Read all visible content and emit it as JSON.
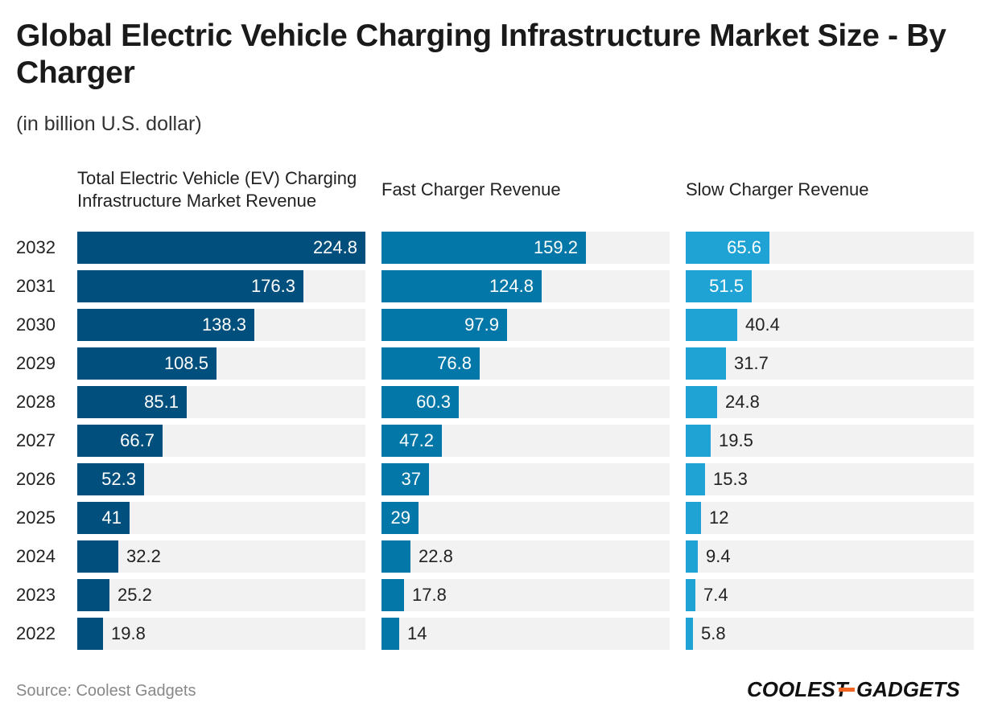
{
  "chart_data": {
    "type": "bar",
    "orientation": "horizontal",
    "title": "Global Electric Vehicle Charging Infrastructure Market Size - By Charger",
    "subtitle": "(in billion U.S. dollar)",
    "categories": [
      "2032",
      "2031",
      "2030",
      "2029",
      "2028",
      "2027",
      "2026",
      "2025",
      "2024",
      "2023",
      "2022"
    ],
    "xlim": [
      0,
      224.8
    ],
    "series": [
      {
        "name": "Total Electric Vehicle (EV) Charging Infrastructure Market Revenue",
        "color": "#004f7c",
        "values": [
          224.8,
          176.3,
          138.3,
          108.5,
          85.1,
          66.7,
          52.3,
          41,
          32.2,
          25.2,
          19.8
        ]
      },
      {
        "name": "Fast Charger Revenue",
        "color": "#0277a8",
        "values": [
          159.2,
          124.8,
          97.9,
          76.8,
          60.3,
          47.2,
          37,
          29,
          22.8,
          17.8,
          14
        ]
      },
      {
        "name": "Slow Charger Revenue",
        "color": "#1fa3d4",
        "values": [
          65.6,
          51.5,
          40.4,
          31.7,
          24.8,
          19.5,
          15.3,
          12,
          9.4,
          7.4,
          5.8
        ]
      }
    ]
  },
  "source": "Source: Coolest Gadgets",
  "logo": {
    "text_left": "COOLEST",
    "text_right": "GADGETS",
    "accent": "#f26522"
  }
}
